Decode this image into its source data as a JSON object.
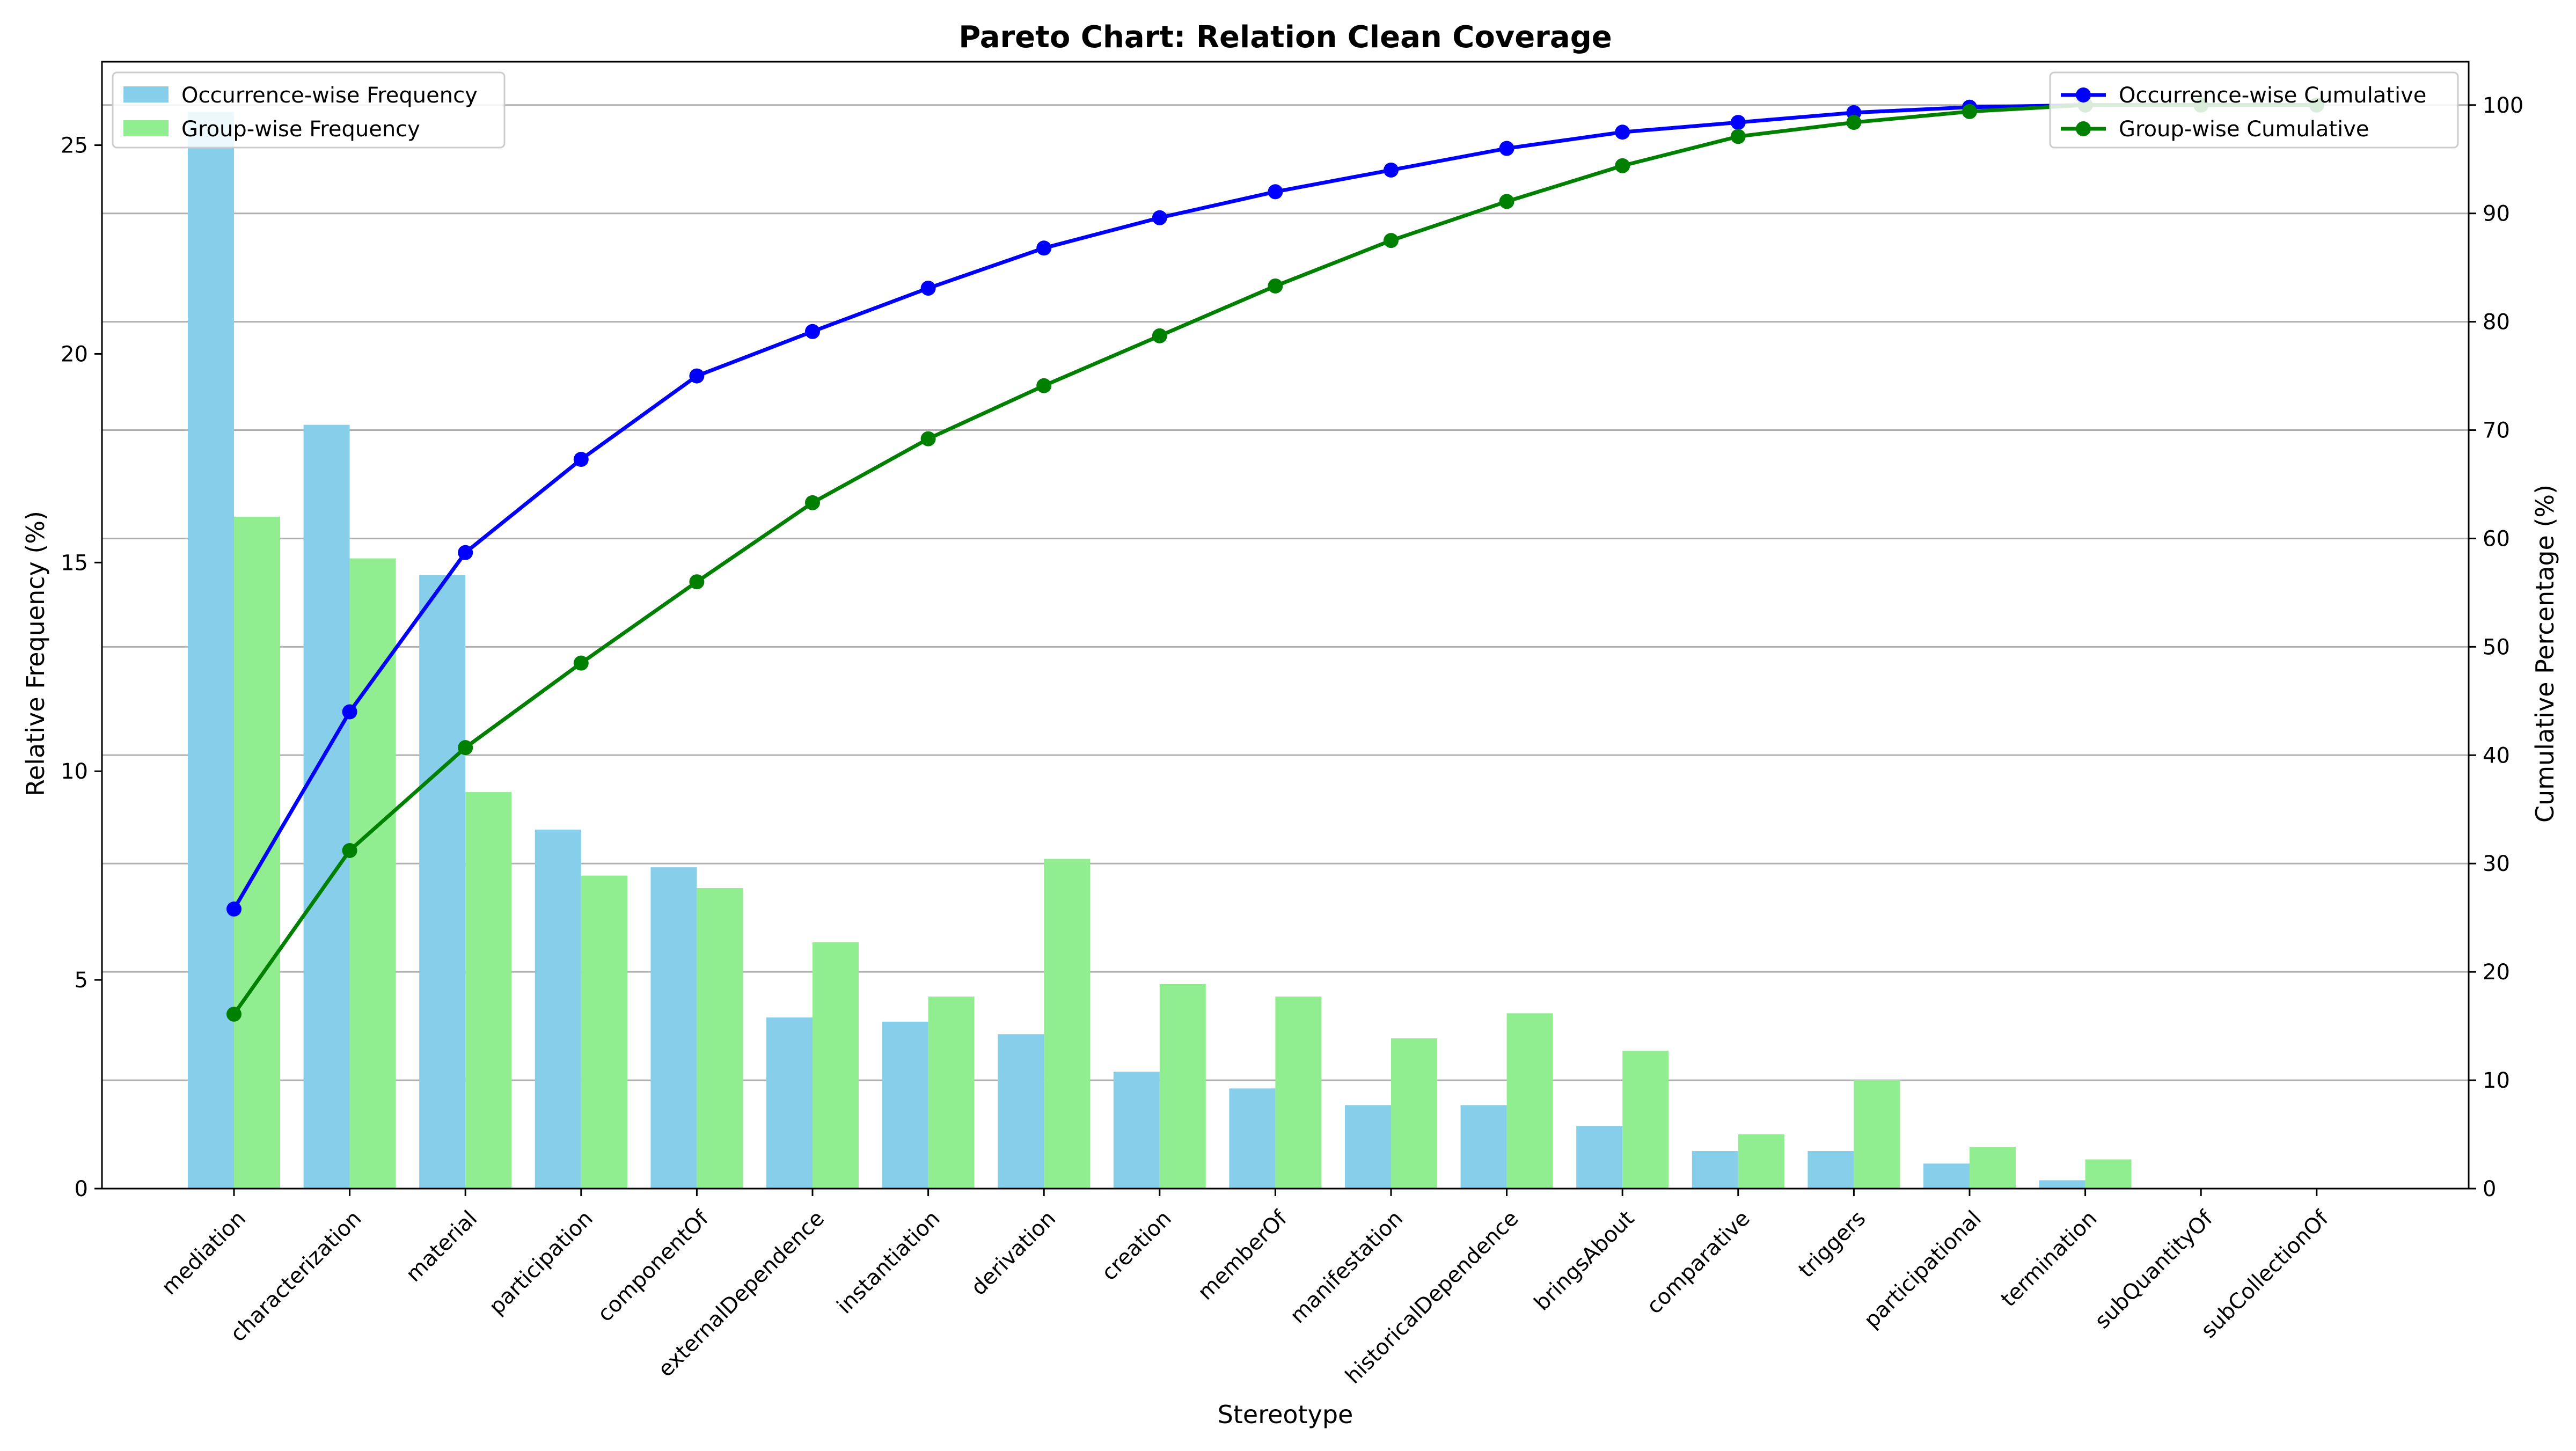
{
  "chart_data": {
    "type": "bar",
    "title": "Pareto Chart: Relation Clean Coverage",
    "xlabel": "Stereotype",
    "ylabel": "Relative Frequency (%)",
    "y2label": "Cumulative Percentage (%)",
    "ylim": [
      0,
      27
    ],
    "y2lim": [
      0,
      104
    ],
    "yticks": [
      0,
      5,
      10,
      15,
      20,
      25
    ],
    "y2ticks": [
      0,
      10,
      20,
      30,
      40,
      50,
      60,
      70,
      80,
      90,
      100
    ],
    "grid": true,
    "categories": [
      "mediation",
      "characterization",
      "material",
      "participation",
      "componentOf",
      "externalDependence",
      "instantiation",
      "derivation",
      "creation",
      "memberOf",
      "manifestation",
      "historicalDependence",
      "bringsAbout",
      "comparative",
      "triggers",
      "participational",
      "termination",
      "subQuantityOf",
      "subCollectionOf"
    ],
    "bar_series": [
      {
        "name": "Occurrence-wise Frequency",
        "color": "#87ceeb",
        "values": [
          25.8,
          18.3,
          14.7,
          8.6,
          7.7,
          4.1,
          4.0,
          3.7,
          2.8,
          2.4,
          2.0,
          2.0,
          1.5,
          0.9,
          0.9,
          0.6,
          0.2,
          0.0,
          0.0
        ]
      },
      {
        "name": "Group-wise Frequency",
        "color": "#90ee90",
        "values": [
          16.1,
          15.1,
          9.5,
          7.5,
          7.2,
          5.9,
          4.6,
          7.9,
          4.9,
          4.6,
          3.6,
          4.2,
          3.3,
          1.3,
          2.6,
          1.0,
          0.7,
          0.0,
          0.0
        ]
      }
    ],
    "line_series": [
      {
        "name": "Occurrence-wise Cumulative",
        "color": "#0000ff",
        "values": [
          25.8,
          44.0,
          58.7,
          67.3,
          75.0,
          79.1,
          83.1,
          86.8,
          89.6,
          92.0,
          94.0,
          96.0,
          97.5,
          98.4,
          99.3,
          99.8,
          100.0,
          100.0,
          100.0
        ]
      },
      {
        "name": "Group-wise Cumulative",
        "color": "#008000",
        "values": [
          16.1,
          31.2,
          40.7,
          48.5,
          56.0,
          63.3,
          69.2,
          74.1,
          78.7,
          83.3,
          87.5,
          91.1,
          94.4,
          97.1,
          98.4,
          99.4,
          100.0,
          100.0,
          100.0
        ]
      }
    ],
    "legend_left": "top-left",
    "legend_right": "top-right"
  }
}
